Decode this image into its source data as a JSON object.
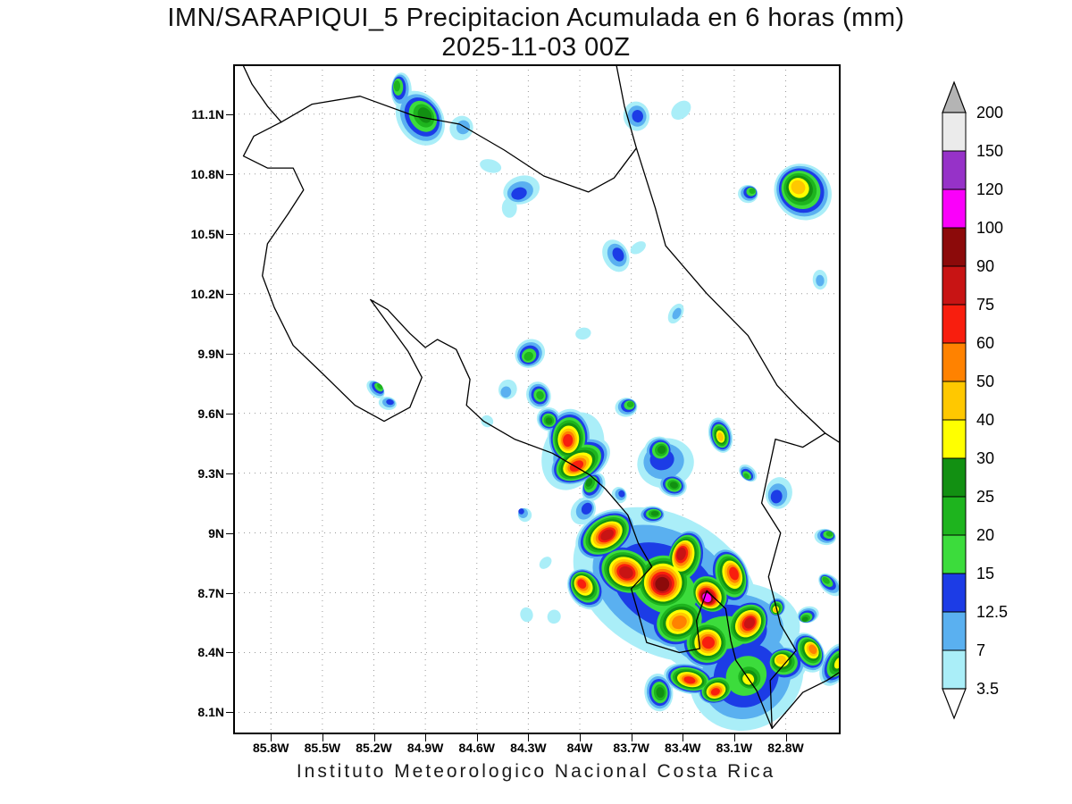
{
  "title": {
    "line1": "IMN/SARAPIQUI_5 Precipitacion Acumulada en 6 horas (mm)",
    "line2": "2025-11-03 00Z"
  },
  "footer": {
    "text": "Instituto Meteorologico Nacional Costa Rica"
  },
  "chart_data": {
    "type": "heatmap",
    "title": "IMN/SARAPIQUI_5 Precipitacion Acumulada en 6 horas (mm)",
    "subtitle": "2025-11-03 00Z",
    "units": "mm",
    "legend_position": "right",
    "grid": "dotted",
    "extent": {
      "lon_min": -86.02,
      "lon_max": -82.48,
      "lat_min": 7.99,
      "lat_max": 11.35
    },
    "x_ticks": [
      {
        "label": "85.8W",
        "lon": -85.8
      },
      {
        "label": "85.5W",
        "lon": -85.5
      },
      {
        "label": "85.2W",
        "lon": -85.2
      },
      {
        "label": "84.9W",
        "lon": -84.9
      },
      {
        "label": "84.6W",
        "lon": -84.6
      },
      {
        "label": "84.3W",
        "lon": -84.3
      },
      {
        "label": "84W",
        "lon": -84.0
      },
      {
        "label": "83.7W",
        "lon": -83.7
      },
      {
        "label": "83.4W",
        "lon": -83.4
      },
      {
        "label": "83.1W",
        "lon": -83.1
      },
      {
        "label": "82.8W",
        "lon": -82.8
      }
    ],
    "y_ticks": [
      {
        "label": "11.1N",
        "lat": 11.1
      },
      {
        "label": "10.8N",
        "lat": 10.8
      },
      {
        "label": "10.5N",
        "lat": 10.5
      },
      {
        "label": "10.2N",
        "lat": 10.2
      },
      {
        "label": "9.9N",
        "lat": 9.9
      },
      {
        "label": "9.6N",
        "lat": 9.6
      },
      {
        "label": "9.3N",
        "lat": 9.3
      },
      {
        "label": "9N",
        "lat": 9.0
      },
      {
        "label": "8.7N",
        "lat": 8.7
      },
      {
        "label": "8.4N",
        "lat": 8.4
      },
      {
        "label": "8.1N",
        "lat": 8.1
      }
    ],
    "scale": {
      "levels": [
        3.5,
        7,
        12.5,
        15,
        20,
        25,
        30,
        40,
        50,
        60,
        75,
        90,
        100,
        120,
        150,
        200
      ],
      "colors": [
        "#aaeef8",
        "#5ab0f0",
        "#1c3ce6",
        "#3cdc3c",
        "#1eb41e",
        "#129012",
        "#ffff00",
        "#ffc800",
        "#ff8200",
        "#f81e0e",
        "#c81414",
        "#8c0a0a",
        "#fa00fa",
        "#9632c8",
        "#ebebeb"
      ],
      "below_color": "#ffffff",
      "above_color": "#b4b4b4"
    },
    "cells": [
      {
        "lon": -85.04,
        "lat": 11.22,
        "mm": 22,
        "r": 0.083
      },
      {
        "lon": -84.93,
        "lat": 11.08,
        "mm": 28,
        "r": 0.155
      },
      {
        "lon": -84.69,
        "lat": 11.03,
        "mm": 10,
        "r": 0.072
      },
      {
        "lon": -83.67,
        "lat": 11.09,
        "mm": 13,
        "r": 0.083
      },
      {
        "lon": -83.41,
        "lat": 11.12,
        "mm": 6,
        "r": 0.057
      },
      {
        "lon": -84.52,
        "lat": 10.84,
        "mm": 6,
        "r": 0.052
      },
      {
        "lon": -84.34,
        "lat": 10.72,
        "mm": 13,
        "r": 0.098
      },
      {
        "lon": -82.7,
        "lat": 10.71,
        "mm": 45,
        "r": 0.171
      },
      {
        "lon": -83.02,
        "lat": 10.7,
        "mm": 22,
        "r": 0.057
      },
      {
        "lon": -83.79,
        "lat": 10.39,
        "mm": 13,
        "r": 0.088
      },
      {
        "lon": -83.44,
        "lat": 10.1,
        "mm": 10,
        "r": 0.052
      },
      {
        "lon": -82.6,
        "lat": 10.27,
        "mm": 10,
        "r": 0.052
      },
      {
        "lon": -84.29,
        "lat": 9.9,
        "mm": 22,
        "r": 0.088
      },
      {
        "lon": -84.42,
        "lat": 9.72,
        "mm": 10,
        "r": 0.057
      },
      {
        "lon": -83.98,
        "lat": 10.0,
        "mm": 6,
        "r": 0.041
      },
      {
        "lon": -85.19,
        "lat": 9.72,
        "mm": 22,
        "r": 0.052
      },
      {
        "lon": -85.12,
        "lat": 9.65,
        "mm": 13,
        "r": 0.047
      },
      {
        "lon": -84.24,
        "lat": 9.69,
        "mm": 22,
        "r": 0.078
      },
      {
        "lon": -84.18,
        "lat": 9.57,
        "mm": 28,
        "r": 0.072
      },
      {
        "lon": -84.06,
        "lat": 9.48,
        "mm": 65,
        "r": 0.15
      },
      {
        "lon": -84.0,
        "lat": 9.36,
        "mm": 65,
        "r": 0.16
      },
      {
        "lon": -83.92,
        "lat": 9.23,
        "mm": 28,
        "r": 0.078
      },
      {
        "lon": -83.73,
        "lat": 9.63,
        "mm": 22,
        "r": 0.062
      },
      {
        "lon": -83.54,
        "lat": 9.41,
        "mm": 28,
        "r": 0.088
      },
      {
        "lon": -83.46,
        "lat": 9.24,
        "mm": 28,
        "r": 0.078
      },
      {
        "lon": -83.18,
        "lat": 9.49,
        "mm": 45,
        "r": 0.088
      },
      {
        "lon": -83.02,
        "lat": 9.3,
        "mm": 22,
        "r": 0.052
      },
      {
        "lon": -82.84,
        "lat": 9.2,
        "mm": 13,
        "r": 0.088
      },
      {
        "lon": -84.32,
        "lat": 9.09,
        "mm": 13,
        "r": 0.041
      },
      {
        "lon": -83.98,
        "lat": 9.11,
        "mm": 13,
        "r": 0.078
      },
      {
        "lon": -83.58,
        "lat": 9.09,
        "mm": 28,
        "r": 0.067
      },
      {
        "lon": -83.85,
        "lat": 8.99,
        "mm": 80,
        "r": 0.165
      },
      {
        "lon": -83.73,
        "lat": 8.81,
        "mm": 80,
        "r": 0.18
      },
      {
        "lon": -83.51,
        "lat": 8.76,
        "mm": 95,
        "r": 0.2
      },
      {
        "lon": -83.24,
        "lat": 8.7,
        "mm": 110,
        "r": 0.13
      },
      {
        "lon": -83.38,
        "lat": 8.87,
        "mm": 80,
        "r": 0.15
      },
      {
        "lon": -83.13,
        "lat": 8.78,
        "mm": 65,
        "r": 0.15
      },
      {
        "lon": -83.03,
        "lat": 8.54,
        "mm": 80,
        "r": 0.15
      },
      {
        "lon": -83.26,
        "lat": 8.45,
        "mm": 65,
        "r": 0.165
      },
      {
        "lon": -83.42,
        "lat": 8.56,
        "mm": 55,
        "r": 0.18
      },
      {
        "lon": -83.5,
        "lat": 8.74,
        "mm": 18,
        "r": 0.5
      },
      {
        "lon": -83.14,
        "lat": 8.52,
        "mm": 18,
        "r": 0.36
      },
      {
        "lon": -83.96,
        "lat": 8.72,
        "mm": 65,
        "r": 0.12
      },
      {
        "lon": -84.15,
        "lat": 8.58,
        "mm": 5,
        "r": 0.041
      },
      {
        "lon": -84.31,
        "lat": 8.59,
        "mm": 5,
        "r": 0.041
      },
      {
        "lon": -84.2,
        "lat": 8.85,
        "mm": 5,
        "r": 0.036
      },
      {
        "lon": -83.36,
        "lat": 8.27,
        "mm": 65,
        "r": 0.123
      },
      {
        "lon": -83.2,
        "lat": 8.22,
        "mm": 65,
        "r": 0.109
      },
      {
        "lon": -83.0,
        "lat": 8.29,
        "mm": 35,
        "r": 0.13
      },
      {
        "lon": -82.8,
        "lat": 8.34,
        "mm": 45,
        "r": 0.116
      },
      {
        "lon": -82.67,
        "lat": 8.4,
        "mm": 55,
        "r": 0.109
      },
      {
        "lon": -82.51,
        "lat": 8.34,
        "mm": 35,
        "r": 0.109
      },
      {
        "lon": -83.54,
        "lat": 8.2,
        "mm": 28,
        "r": 0.1
      },
      {
        "lon": -83.03,
        "lat": 8.29,
        "mm": 18,
        "r": 0.34
      },
      {
        "lon": -82.85,
        "lat": 8.63,
        "mm": 45,
        "r": 0.057
      },
      {
        "lon": -82.67,
        "lat": 8.59,
        "mm": 28,
        "r": 0.057
      },
      {
        "lon": -82.54,
        "lat": 8.74,
        "mm": 22,
        "r": 0.067
      },
      {
        "lon": -82.57,
        "lat": 8.98,
        "mm": 22,
        "r": 0.057
      },
      {
        "lon": -83.77,
        "lat": 9.19,
        "mm": 13,
        "r": 0.047
      },
      {
        "lon": -84.54,
        "lat": 9.56,
        "mm": 5,
        "r": 0.036
      },
      {
        "lon": -84.41,
        "lat": 10.63,
        "mm": 5,
        "r": 0.052
      },
      {
        "lon": -83.66,
        "lat": 10.43,
        "mm": 5,
        "r": 0.041
      },
      {
        "lon": -84.04,
        "lat": 9.41,
        "mm": 10,
        "r": 0.21
      },
      {
        "lon": -83.5,
        "lat": 9.35,
        "mm": 13,
        "r": 0.16
      }
    ],
    "coastlines": [
      [
        [
          -85.74,
          11.06
        ],
        [
          -85.9,
          10.99
        ],
        [
          -85.96,
          10.89
        ],
        [
          -85.82,
          10.83
        ],
        [
          -85.67,
          10.83
        ],
        [
          -85.61,
          10.72
        ],
        [
          -85.7,
          10.6
        ],
        [
          -85.82,
          10.45
        ],
        [
          -85.85,
          10.29
        ],
        [
          -85.78,
          10.13
        ],
        [
          -85.67,
          9.94
        ],
        [
          -85.5,
          9.8
        ],
        [
          -85.31,
          9.64
        ],
        [
          -85.14,
          9.56
        ],
        [
          -84.99,
          9.63
        ],
        [
          -84.92,
          9.78
        ],
        [
          -85.0,
          9.91
        ],
        [
          -85.11,
          10.04
        ],
        [
          -85.22,
          10.17
        ],
        [
          -85.12,
          10.12
        ],
        [
          -84.99,
          10.0
        ],
        [
          -84.9,
          9.93
        ],
        [
          -84.83,
          9.97
        ],
        [
          -84.72,
          9.92
        ],
        [
          -84.64,
          9.77
        ],
        [
          -84.66,
          9.64
        ],
        [
          -84.56,
          9.56
        ],
        [
          -84.38,
          9.47
        ],
        [
          -84.16,
          9.4
        ],
        [
          -83.94,
          9.29
        ],
        [
          -83.85,
          9.22
        ],
        [
          -83.72,
          9.09
        ],
        [
          -83.66,
          8.95
        ],
        [
          -83.58,
          8.83
        ],
        [
          -83.7,
          8.72
        ],
        [
          -83.61,
          8.45
        ],
        [
          -83.42,
          8.4
        ],
        [
          -83.3,
          8.42
        ],
        [
          -83.32,
          8.56
        ],
        [
          -83.26,
          8.71
        ],
        [
          -83.15,
          8.62
        ],
        [
          -83.12,
          8.46
        ],
        [
          -83.09,
          8.36
        ],
        [
          -82.97,
          8.21
        ],
        [
          -82.88,
          8.02
        ]
      ],
      [
        [
          -85.74,
          11.06
        ],
        [
          -85.56,
          11.15
        ],
        [
          -85.28,
          11.19
        ],
        [
          -84.96,
          11.09
        ],
        [
          -84.7,
          11.05
        ],
        [
          -84.44,
          10.92
        ],
        [
          -84.21,
          10.79
        ],
        [
          -83.95,
          10.71
        ],
        [
          -83.8,
          10.78
        ],
        [
          -83.67,
          10.93
        ],
        [
          -83.56,
          10.63
        ],
        [
          -83.5,
          10.44
        ],
        [
          -83.26,
          10.2
        ],
        [
          -83.02,
          9.99
        ],
        [
          -82.85,
          9.74
        ],
        [
          -82.73,
          9.63
        ],
        [
          -82.57,
          9.5
        ],
        [
          -82.48,
          9.45
        ]
      ],
      [
        [
          -82.57,
          9.5
        ],
        [
          -82.7,
          9.43
        ],
        [
          -82.86,
          9.47
        ],
        [
          -82.94,
          9.15
        ],
        [
          -82.83,
          9.0
        ],
        [
          -82.9,
          8.78
        ],
        [
          -82.83,
          8.54
        ],
        [
          -82.74,
          8.41
        ],
        [
          -82.89,
          8.26
        ],
        [
          -82.88,
          8.02
        ]
      ],
      [
        [
          -83.67,
          10.93
        ],
        [
          -83.74,
          11.14
        ],
        [
          -83.79,
          11.36
        ]
      ],
      [
        [
          -85.74,
          11.06
        ],
        [
          -85.82,
          11.14
        ],
        [
          -85.91,
          11.25
        ],
        [
          -85.97,
          11.36
        ]
      ],
      [
        [
          -82.88,
          8.02
        ],
        [
          -82.7,
          8.2
        ],
        [
          -82.56,
          8.26
        ],
        [
          -82.47,
          8.31
        ]
      ]
    ]
  }
}
